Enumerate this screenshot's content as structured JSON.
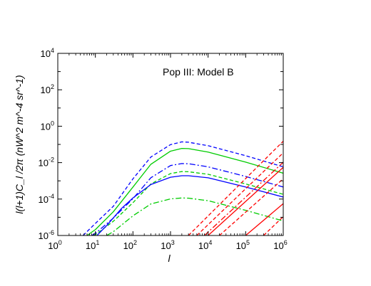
{
  "chart_data": {
    "type": "line",
    "title": "",
    "annotation": "Pop III: Model B",
    "xlabel": "l",
    "ylabel": "l(l+1)C_l /2π (nW^2 m^-4 sr^-1)",
    "xscale": "log",
    "yscale": "log",
    "xlim": [
      1,
      1000000
    ],
    "ylim": [
      1e-06,
      10000
    ],
    "x_ticks": [
      {
        "base": "10",
        "exp": "0"
      },
      {
        "base": "10",
        "exp": "1"
      },
      {
        "base": "10",
        "exp": "2"
      },
      {
        "base": "10",
        "exp": "3"
      },
      {
        "base": "10",
        "exp": "4"
      },
      {
        "base": "10",
        "exp": "5"
      },
      {
        "base": "10",
        "exp": "6"
      }
    ],
    "y_ticks": [
      {
        "base": "10",
        "exp": "-6"
      },
      {
        "base": "10",
        "exp": "-4"
      },
      {
        "base": "10",
        "exp": "-2"
      },
      {
        "base": "10",
        "exp": "0"
      },
      {
        "base": "10",
        "exp": "2"
      },
      {
        "base": "10",
        "exp": "4"
      }
    ],
    "grid": false,
    "legend": "none",
    "series": [
      {
        "color": "#0000ff",
        "style": "dashed",
        "x": [
          4.7,
          10,
          30,
          100,
          300,
          1000,
          2000,
          3000,
          10000,
          100000,
          1000000
        ],
        "y": [
          1e-06,
          4.6e-06,
          4e-05,
          0.00129,
          0.0204,
          0.0977,
          0.138,
          0.132,
          0.0851,
          0.024,
          0.00589
        ]
      },
      {
        "color": "#00cc00",
        "style": "solid",
        "x": [
          6,
          10,
          30,
          100,
          300,
          1000,
          2000,
          3000,
          10000,
          100000,
          1000000
        ],
        "y": [
          1e-06,
          2.1e-06,
          2e-05,
          0.000457,
          0.00813,
          0.0427,
          0.0603,
          0.0589,
          0.038,
          0.0107,
          0.00263
        ]
      },
      {
        "color": "#0000ff",
        "style": "dashdot",
        "x": [
          8,
          10,
          30,
          100,
          300,
          1000,
          2000,
          3000,
          10000,
          100000,
          1000000
        ],
        "y": [
          1e-06,
          1.3e-06,
          9e-06,
          0.000105,
          0.00148,
          0.00692,
          0.00891,
          0.00871,
          0.00589,
          0.00174,
          0.00046
        ]
      },
      {
        "color": "#00cc00",
        "style": "dashed",
        "x": [
          9,
          10,
          30,
          100,
          300,
          1000,
          2000,
          3000,
          10000,
          100000,
          1000000
        ],
        "y": [
          1e-06,
          1.1e-06,
          6e-06,
          6.3e-05,
          0.000676,
          0.00251,
          0.00324,
          0.00316,
          0.00229,
          0.000676,
          0.000182
        ]
      },
      {
        "color": "#0000ff",
        "style": "solid",
        "x": [
          11,
          20,
          50,
          100,
          300,
          1000,
          2000,
          3000,
          10000,
          100000,
          1000000
        ],
        "y": [
          1e-06,
          3.5e-06,
          3.1e-05,
          0.000115,
          0.00063,
          0.00158,
          0.00191,
          0.00191,
          0.00148,
          0.000457,
          0.000129
        ]
      },
      {
        "color": "#00cc00",
        "style": "dashdot",
        "x": [
          20,
          30,
          100,
          300,
          1000,
          2000,
          3000,
          10000,
          100000,
          1000000
        ],
        "y": [
          1e-06,
          1.6e-06,
          1.2e-05,
          5.4e-05,
          0.000102,
          0.000115,
          0.000112,
          8.13e-05,
          2.4e-05,
          6.3e-06
        ]
      },
      {
        "color": "#ff0000",
        "style": "dashed",
        "x": [
          3000,
          1000000
        ],
        "y": [
          1e-06,
          0.151
        ]
      },
      {
        "color": "#ff0000",
        "style": "dashed",
        "x": [
          5000,
          1000000
        ],
        "y": [
          1e-06,
          0.0347
        ]
      },
      {
        "color": "#ff0000",
        "style": "dashdot",
        "x": [
          8000,
          1000000
        ],
        "y": [
          1e-06,
          0.0105
        ]
      },
      {
        "color": "#ff0000",
        "style": "solid",
        "x": [
          10000,
          1000000
        ],
        "y": [
          1e-06,
          0.0055
        ]
      },
      {
        "color": "#ff0000",
        "style": "dashed",
        "x": [
          20000,
          1000000
        ],
        "y": [
          1e-06,
          0.0013
        ]
      },
      {
        "color": "#ff0000",
        "style": "solid",
        "x": [
          100000,
          1000000
        ],
        "y": [
          1e-06,
          5.62e-05
        ]
      },
      {
        "color": "#ff0000",
        "style": "dashed",
        "x": [
          300000,
          1000000
        ],
        "y": [
          1e-06,
          1.09e-05
        ]
      }
    ]
  }
}
